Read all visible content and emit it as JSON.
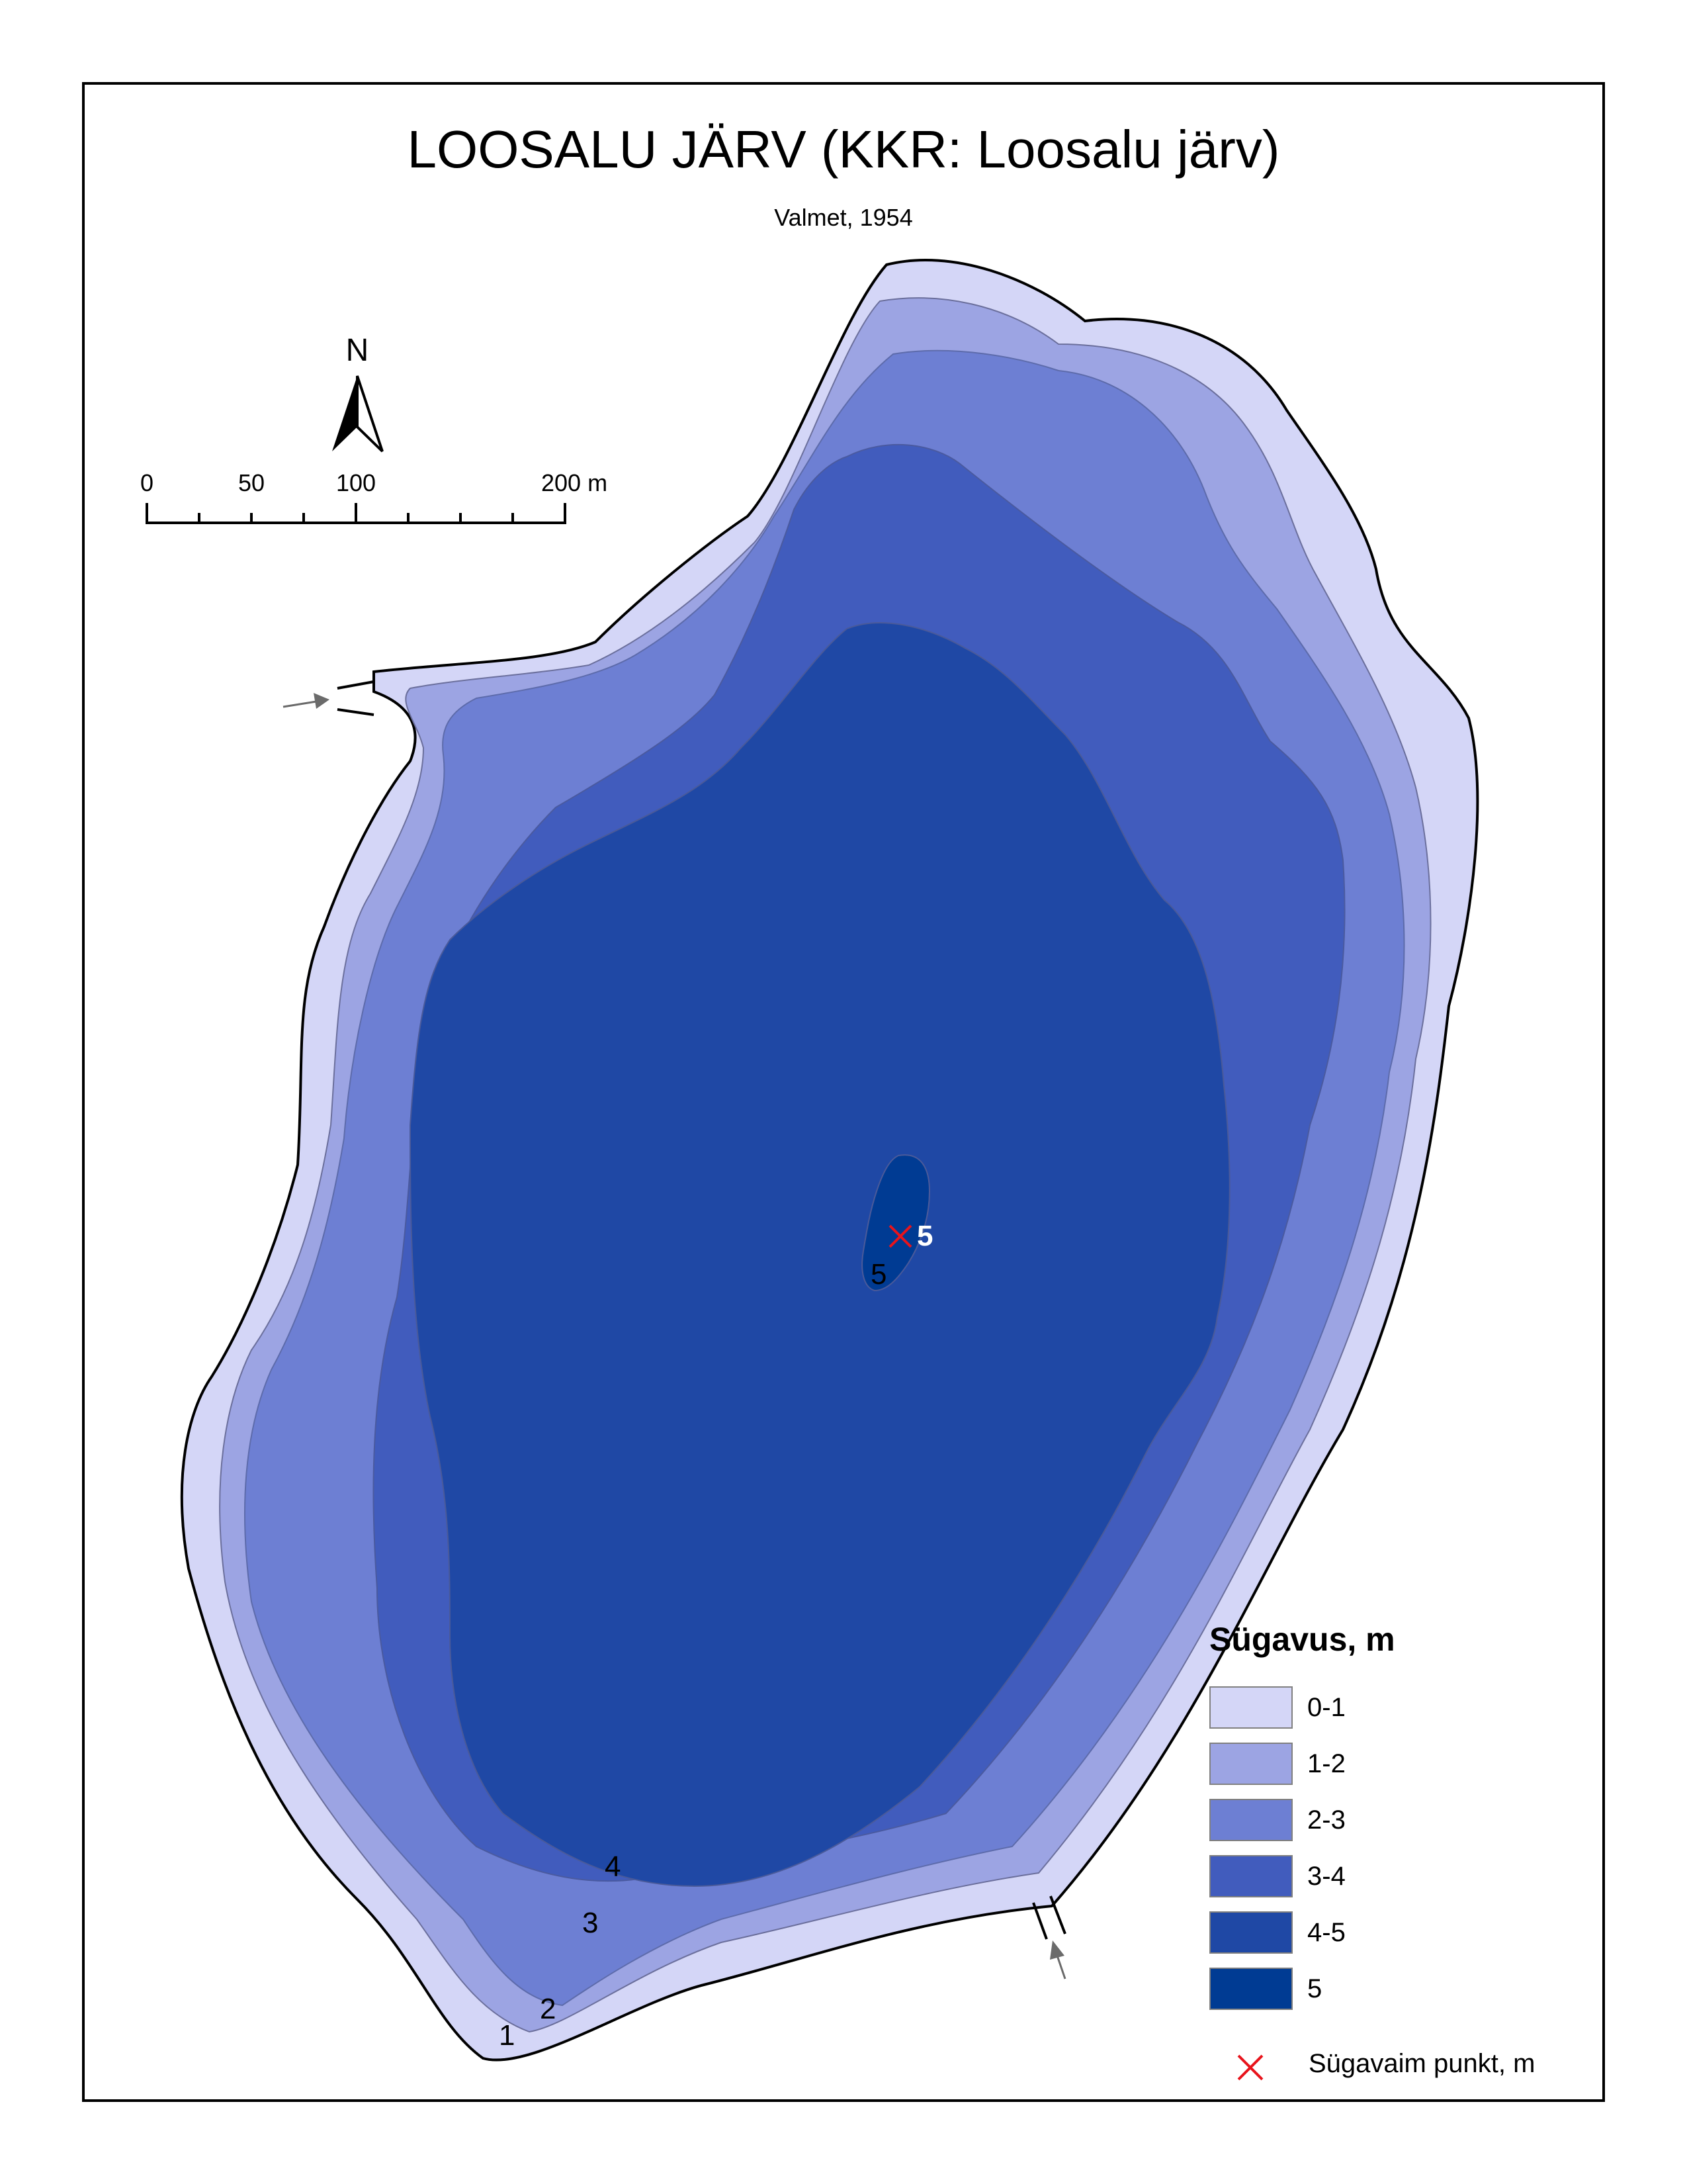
{
  "title": "LOOSALU JÄRV (KKR: Loosalu järv)",
  "subtitle": "Valmet, 1954",
  "north_arrow": {
    "label": "N",
    "icon": "north-arrow-icon"
  },
  "scale_bar": {
    "labels": [
      "0",
      "50",
      "100",
      "200 m"
    ]
  },
  "contour_labels": [
    "1",
    "2",
    "3",
    "4",
    "5"
  ],
  "deepest_point": {
    "value": "5"
  },
  "legend": {
    "title": "Sügavus, m",
    "items": [
      {
        "label": "0-1",
        "color": "#d4d6f7"
      },
      {
        "label": "1-2",
        "color": "#9ca4e3"
      },
      {
        "label": "2-3",
        "color": "#6d7fd3"
      },
      {
        "label": "3-4",
        "color": "#415cbd"
      },
      {
        "label": "4-5",
        "color": "#1f48a5"
      },
      {
        "label": "5",
        "color": "#003b93"
      }
    ],
    "deepest_label": "Sügavaim punkt, m",
    "deepest_marker_color": "#e8141c"
  }
}
